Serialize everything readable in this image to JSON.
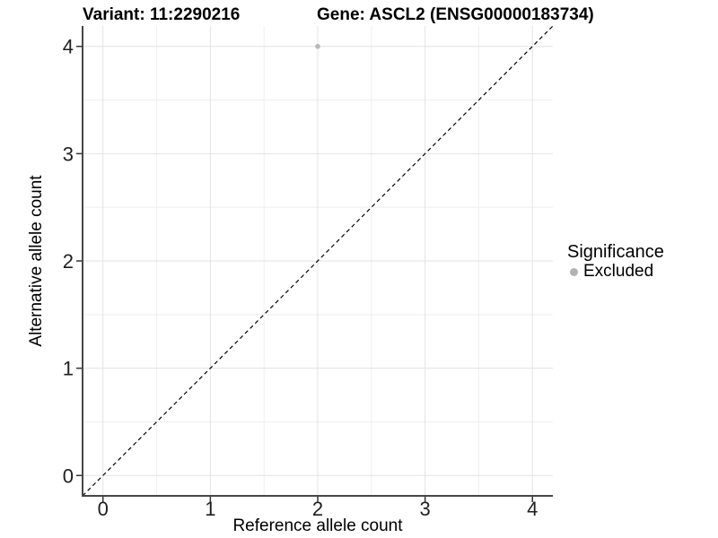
{
  "title": {
    "variant_label": "Variant: 11:2290216",
    "gene_label": "Gene: ASCL2 (ENSG00000183734)"
  },
  "chart_data": {
    "type": "scatter",
    "title": "Variant: 11:2290216   Gene: ASCL2 (ENSG00000183734)",
    "xlabel": "Reference allele count",
    "ylabel": "Alternative allele count",
    "xlim": [
      -0.19,
      4.19
    ],
    "ylim": [
      -0.19,
      4.19
    ],
    "x_ticks": [
      0,
      1,
      2,
      3,
      4
    ],
    "y_ticks": [
      0,
      1,
      2,
      3,
      4
    ],
    "x_minor_ticks": [
      0.5,
      1.5,
      2.5,
      3.5
    ],
    "y_minor_ticks": [
      0.5,
      1.5,
      2.5,
      3.5
    ],
    "grid": "major and minor, light gray on white",
    "series": [
      {
        "name": "Excluded",
        "marker": "circle",
        "color": "#b8b8b8",
        "points": [
          {
            "x": 2,
            "y": 4
          }
        ]
      }
    ],
    "reference_line": {
      "type": "identity y=x",
      "style": "dashed",
      "color": "#000000",
      "from": [
        -0.19,
        -0.19
      ],
      "to": [
        4.19,
        4.19
      ]
    },
    "legend": {
      "title": "Significance",
      "position": "right",
      "entries": [
        {
          "label": "Excluded",
          "marker": "circle",
          "color": "#b3b3b3"
        }
      ]
    }
  },
  "colors": {
    "background": "#ffffff",
    "grid_major": "#e3e3e3",
    "grid_minor": "#efefef",
    "axis_line": "#474747",
    "tick_mark": "#333333",
    "tick_label": "#1f1f1f",
    "point": "#b8b8b8",
    "legend_marker": "#b3b3b3",
    "identity_line": "#000000"
  }
}
